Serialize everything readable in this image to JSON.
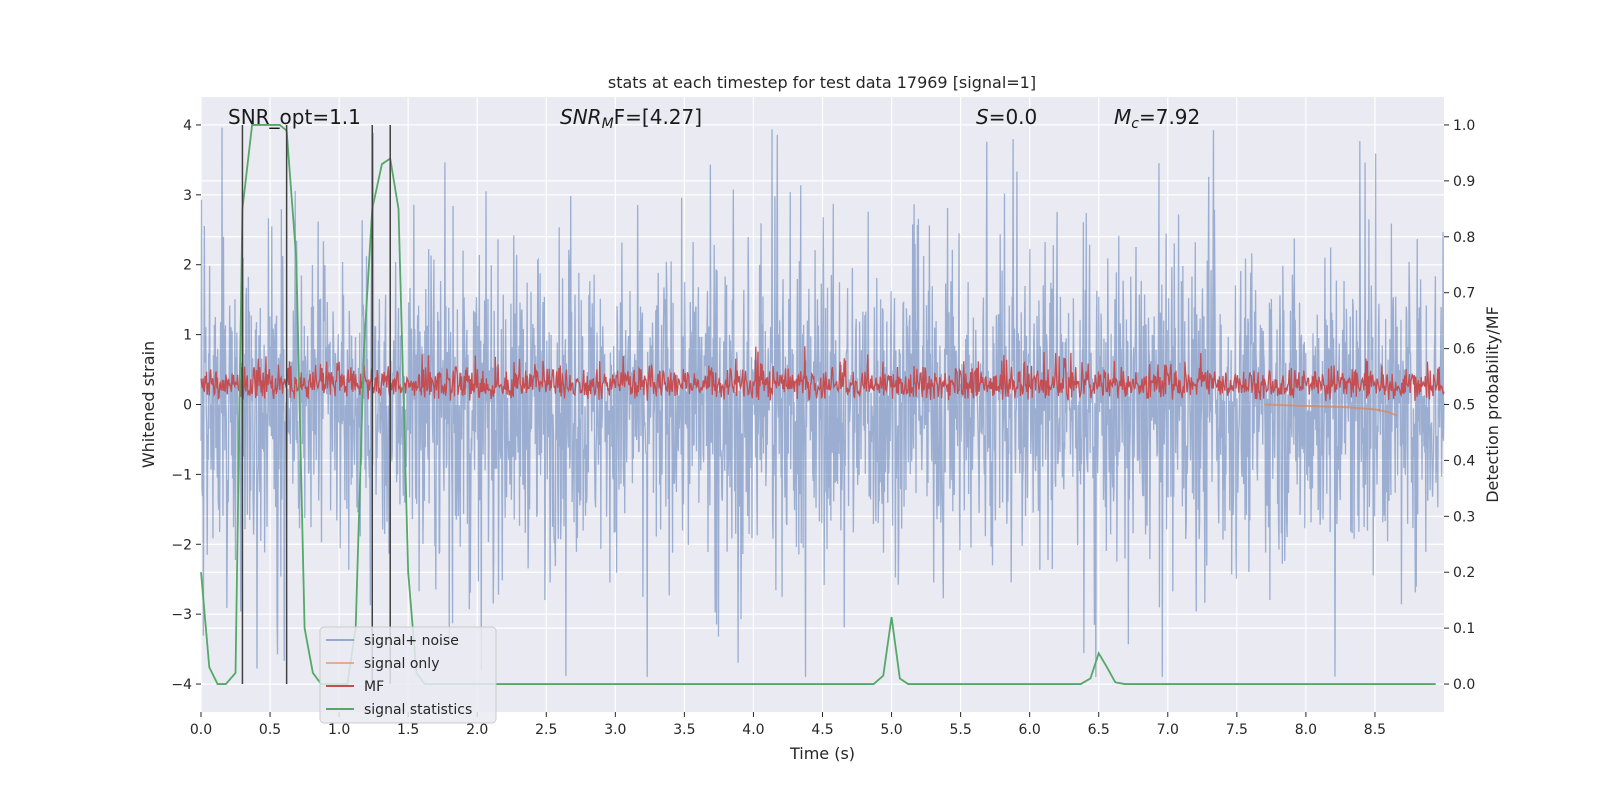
{
  "chart_data": {
    "type": "line",
    "title": "stats at each timestep for test data 17969 [signal=1]",
    "xlabel": "Time (s)",
    "ylabel_left": "Whitened strain",
    "ylabel_right": "Detection probability/MF",
    "xlim": [
      0,
      9.0
    ],
    "ylim_left": [
      -4.4,
      4.4
    ],
    "ylim_right": [
      -0.05,
      1.05
    ],
    "x_ticks": [
      0.0,
      0.5,
      1.0,
      1.5,
      2.0,
      2.5,
      3.0,
      3.5,
      4.0,
      4.5,
      5.0,
      5.5,
      6.0,
      6.5,
      7.0,
      7.5,
      8.0,
      8.5
    ],
    "x_tick_labels": [
      "0.0",
      "0.5",
      "1.0",
      "1.5",
      "2.0",
      "2.5",
      "3.0",
      "3.5",
      "4.0",
      "4.5",
      "5.0",
      "5.5",
      "6.0",
      "6.5",
      "7.0",
      "7.5",
      "8.0",
      "8.5"
    ],
    "y_left_ticks": [
      -4,
      -3,
      -2,
      -1,
      0,
      1,
      2,
      3,
      4
    ],
    "y_left_tick_labels": [
      "−4",
      "−3",
      "−2",
      "−1",
      "0",
      "1",
      "2",
      "3",
      "4"
    ],
    "y_right_ticks": [
      0.0,
      0.1,
      0.2,
      0.3,
      0.4,
      0.5,
      0.6,
      0.7,
      0.8,
      0.9,
      1.0
    ],
    "y_right_tick_labels": [
      "0.0",
      "0.1",
      "0.2",
      "0.3",
      "0.4",
      "0.5",
      "0.6",
      "0.7",
      "0.8",
      "0.9",
      "1.0"
    ],
    "annotations": {
      "snr_opt": "SNR_opt=1.1",
      "snr_mf_main": "SNR",
      "snr_mf_sub": "M",
      "snr_mf_rest": "F=[4.27]",
      "s_var": "S",
      "s_rest": "=0.0",
      "mc_var": "M",
      "mc_sub": "c",
      "mc_rest": "=7.92"
    },
    "vertical_lines_s": [
      0.3,
      0.62,
      1.24,
      1.37
    ],
    "series": [
      {
        "name": "signal+ noise",
        "axis": "left",
        "color": "#4c72b0",
        "alpha": 0.5,
        "description": "dense whitened strain noise, roughly within -2.5..2.5 with spikes up to about 4 and down to about -4",
        "approx_envelope": {
          "typical_min": -1.8,
          "typical_max": 1.8,
          "peak_min": -3.9,
          "peak_max": 4.0
        }
      },
      {
        "name": "signal only",
        "axis": "left",
        "color": "#dd8452",
        "x": [
          7.7,
          8.0,
          8.3,
          8.5,
          8.6,
          8.66
        ],
        "y": [
          0.0,
          -0.02,
          -0.04,
          -0.07,
          -0.11,
          -0.16
        ]
      },
      {
        "name": "MF",
        "axis": "right",
        "color": "#c44e52",
        "description": "matched-filter output fluctuating between about 0.5 and 0.6 across the full time range, peaks near 0.62",
        "approx_envelope": {
          "min": 0.5,
          "typical_max": 0.58,
          "peak_max": 0.62
        }
      },
      {
        "name": "signal statistics",
        "axis": "right",
        "color": "#55a868",
        "x": [
          0.0,
          0.06,
          0.12,
          0.18,
          0.25,
          0.3,
          0.37,
          0.43,
          0.5,
          0.57,
          0.62,
          0.69,
          0.75,
          0.81,
          0.87,
          0.94,
          1.0,
          1.06,
          1.12,
          1.18,
          1.24,
          1.31,
          1.37,
          1.43,
          1.5,
          1.56,
          1.62,
          1.69,
          2.0,
          3.0,
          4.0,
          4.87,
          4.94,
          5.0,
          5.06,
          5.12,
          5.5,
          6.0,
          6.37,
          6.44,
          6.5,
          6.56,
          6.62,
          6.69,
          7.0,
          8.0,
          8.94
        ],
        "y": [
          0.2,
          0.03,
          0.0,
          0.0,
          0.02,
          0.85,
          1.0,
          1.0,
          1.0,
          1.0,
          0.99,
          0.76,
          0.1,
          0.02,
          0.0,
          0.0,
          0.0,
          0.0,
          0.1,
          0.6,
          0.85,
          0.93,
          0.94,
          0.85,
          0.2,
          0.02,
          0.0,
          0.0,
          0.0,
          0.0,
          0.0,
          0.0,
          0.015,
          0.12,
          0.01,
          0.0,
          0.0,
          0.0,
          0.0,
          0.01,
          0.055,
          0.03,
          0.003,
          0.0,
          0.0,
          0.0,
          0.0
        ]
      }
    ],
    "legend": {
      "placement": "lower-left",
      "entries": [
        {
          "label": "signal+ noise",
          "color": "#4c72b0",
          "alpha": 0.55
        },
        {
          "label": "signal only",
          "color": "#dd8452",
          "alpha": 0.6
        },
        {
          "label": "MF",
          "color": "#c44e52",
          "alpha": 1.0
        },
        {
          "label": "signal statistics",
          "color": "#55a868",
          "alpha": 1.0
        }
      ]
    },
    "style": {
      "plot_background": "#eaeaf2",
      "grid_color": "#ffffff",
      "vertical_line_color": "#404040"
    }
  }
}
